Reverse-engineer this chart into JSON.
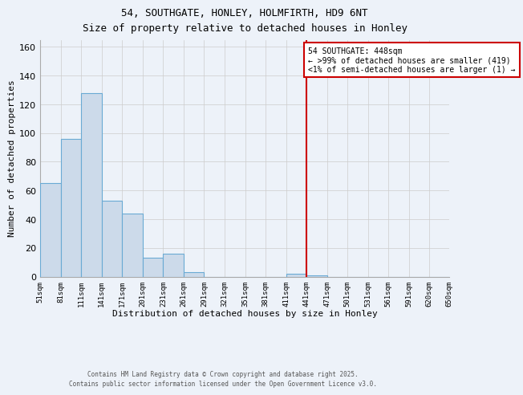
{
  "title": "54, SOUTHGATE, HONLEY, HOLMFIRTH, HD9 6NT",
  "subtitle": "Size of property relative to detached houses in Honley",
  "xlabel": "Distribution of detached houses by size in Honley",
  "ylabel": "Number of detached properties",
  "bar_color": "#ccdaea",
  "bar_edge_color": "#6aaad4",
  "background_color": "#edf2f9",
  "grid_color": "#cccccc",
  "vline_x": 441,
  "vline_color": "#cc0000",
  "annotation_title": "54 SOUTHGATE: 448sqm",
  "annotation_line1": "← >99% of detached houses are smaller (419)",
  "annotation_line2": "<1% of semi-detached houses are larger (1) →",
  "annotation_box_color": "#ffffff",
  "annotation_box_edge": "#cc0000",
  "bins": [
    51,
    81,
    111,
    141,
    171,
    201,
    231,
    261,
    291,
    321,
    351,
    381,
    411,
    441,
    471,
    501,
    531,
    561,
    591,
    620,
    650
  ],
  "counts": [
    65,
    96,
    128,
    53,
    44,
    13,
    16,
    3,
    0,
    0,
    0,
    0,
    2,
    1,
    0,
    0,
    0,
    0,
    0,
    0
  ],
  "tick_labels": [
    "51sqm",
    "81sqm",
    "111sqm",
    "141sqm",
    "171sqm",
    "201sqm",
    "231sqm",
    "261sqm",
    "291sqm",
    "321sqm",
    "351sqm",
    "381sqm",
    "411sqm",
    "441sqm",
    "471sqm",
    "501sqm",
    "531sqm",
    "561sqm",
    "591sqm",
    "620sqm",
    "650sqm"
  ],
  "ylim": [
    0,
    165
  ],
  "yticks": [
    0,
    20,
    40,
    60,
    80,
    100,
    120,
    140,
    160
  ],
  "footer_line1": "Contains HM Land Registry data © Crown copyright and database right 2025.",
  "footer_line2": "Contains public sector information licensed under the Open Government Licence v3.0."
}
